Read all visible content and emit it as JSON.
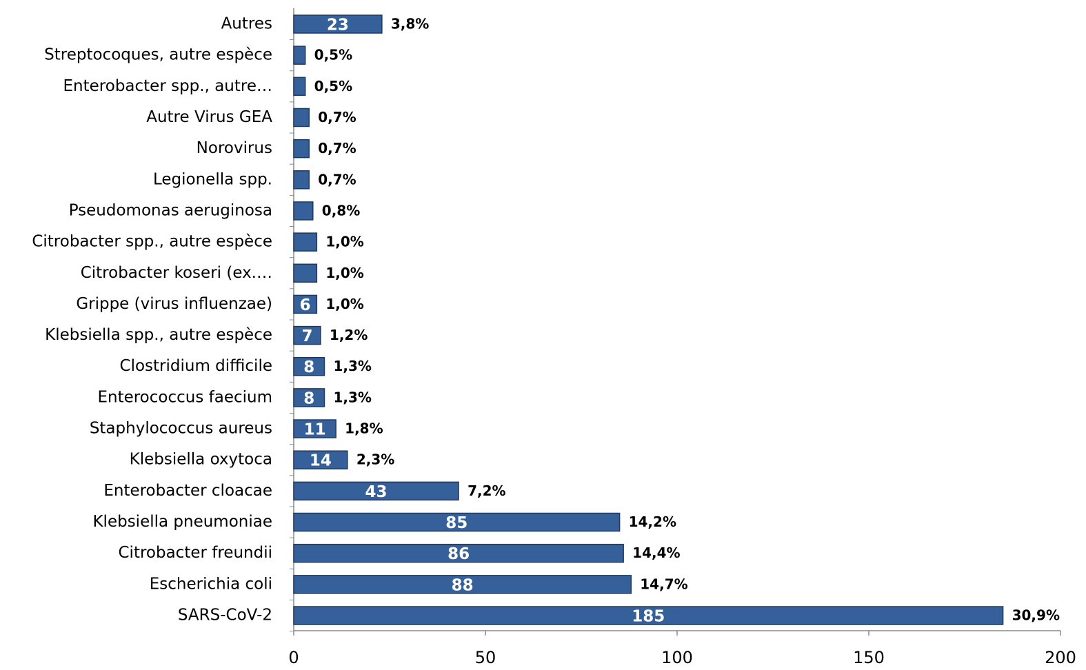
{
  "chart_data": {
    "type": "barh",
    "categories": [
      "Autres",
      "Streptocoques, autre espèce",
      "Enterobacter spp., autre…",
      "Autre Virus GEA",
      "Norovirus",
      "Legionella spp.",
      "Pseudomonas aeruginosa",
      "Citrobacter spp., autre espèce",
      "Citrobacter koseri (ex.…",
      "Grippe (virus influenzae)",
      "Klebsiella spp., autre espèce",
      "Clostridium difficile",
      "Enterococcus faecium",
      "Staphylococcus aureus",
      "Klebsiella oxytoca",
      "Enterobacter cloacae",
      "Klebsiella pneumoniae",
      "Citrobacter freundii",
      "Escherichia coli",
      "SARS-CoV-2"
    ],
    "values": [
      23,
      3,
      3,
      4,
      4,
      4,
      5,
      6,
      6,
      6,
      7,
      8,
      8,
      11,
      14,
      43,
      85,
      86,
      88,
      185
    ],
    "value_labels": [
      "23",
      null,
      null,
      null,
      null,
      null,
      null,
      null,
      null,
      "6",
      "7",
      "8",
      "8",
      "11",
      "14",
      "43",
      "85",
      "86",
      "88",
      "185"
    ],
    "percent_labels": [
      "3,8%",
      "0,5%",
      "0,5%",
      "0,7%",
      "0,7%",
      "0,7%",
      "0,8%",
      "1,0%",
      "1,0%",
      "1,0%",
      "1,2%",
      "1,3%",
      "1,3%",
      "1,8%",
      "2,3%",
      "7,2%",
      "14,2%",
      "14,4%",
      "14,7%",
      "30,9%"
    ],
    "color": "#36609a",
    "xlim": [
      0,
      200
    ],
    "xticks": [
      0,
      50,
      100,
      150,
      200
    ]
  }
}
